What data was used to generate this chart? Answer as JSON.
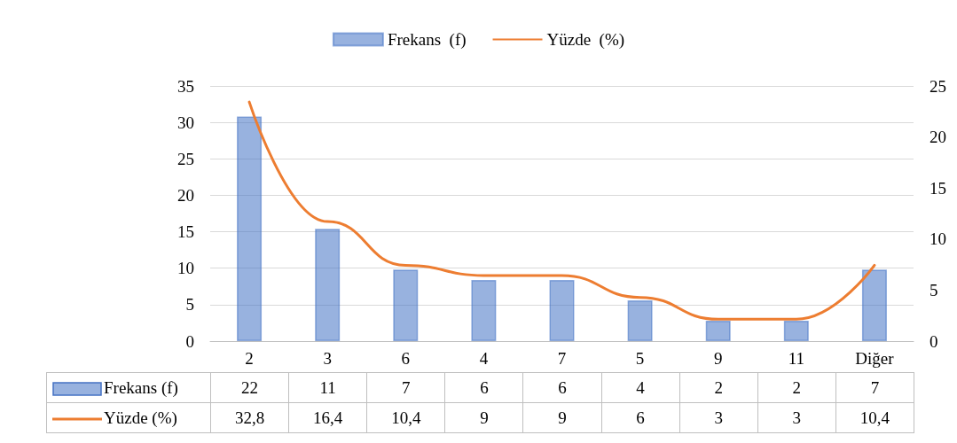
{
  "chart_data": {
    "type": "bar",
    "categories": [
      "2",
      "3",
      "6",
      "4",
      "7",
      "5",
      "9",
      "11",
      "Diğer"
    ],
    "series": [
      {
        "name": "Frekans  (f)",
        "axis": "y2",
        "color": "#4472c4",
        "values": [
          22,
          11,
          7,
          6,
          6,
          4,
          2,
          2,
          7
        ],
        "value_labels": [
          "22",
          "11",
          "7",
          "6",
          "6",
          "4",
          "2",
          "2",
          "7"
        ]
      },
      {
        "name": "Yüzde  (%)",
        "type": "line",
        "color": "#ed7d31",
        "values": [
          32.8,
          16.4,
          10.4,
          9,
          9,
          6,
          3,
          3,
          10.4
        ],
        "value_labels": [
          "32,8",
          "16,4",
          "10,4",
          "9",
          "9",
          "6",
          "3",
          "3",
          "10,4"
        ]
      }
    ],
    "ylim": [
      0,
      35
    ],
    "yticks": [
      0,
      5,
      10,
      15,
      20,
      25,
      30,
      35
    ],
    "y2lim": [
      0,
      25
    ],
    "y2ticks": [
      0,
      5,
      10,
      15,
      20,
      25
    ],
    "grid": "y",
    "legend": "top",
    "marker": "none",
    "line_style": "solid"
  }
}
